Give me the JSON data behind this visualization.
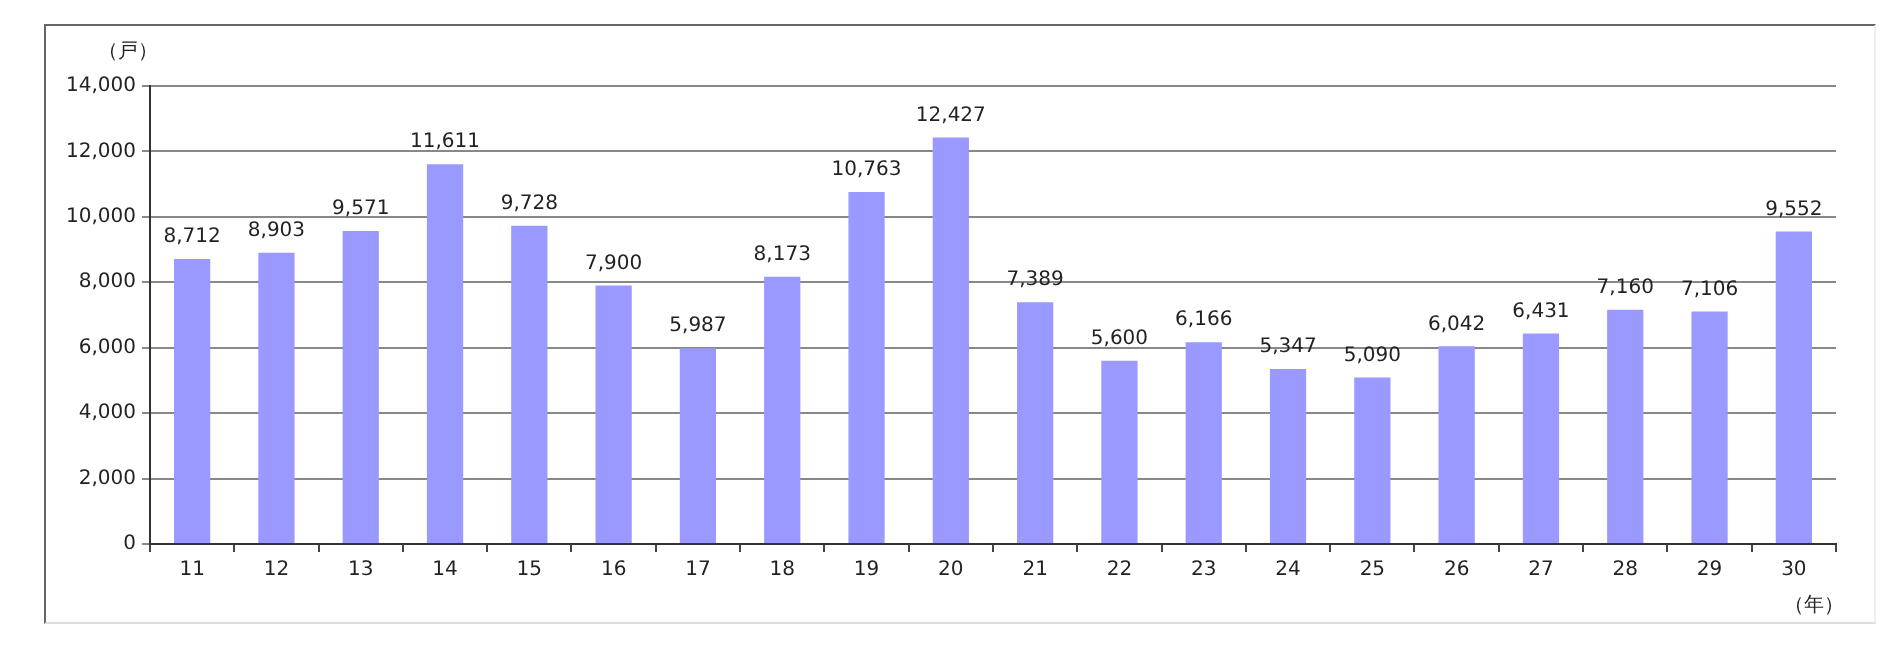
{
  "chart_data": {
    "type": "bar",
    "xlabel": "（年）",
    "ylabel": "（戸）",
    "categories": [
      "11",
      "12",
      "13",
      "14",
      "15",
      "16",
      "17",
      "18",
      "19",
      "20",
      "21",
      "22",
      "23",
      "24",
      "25",
      "26",
      "27",
      "28",
      "29",
      "30"
    ],
    "values": [
      8712,
      8903,
      9571,
      11611,
      9728,
      7900,
      5987,
      8173,
      10763,
      12427,
      7389,
      5600,
      6166,
      5347,
      5090,
      6042,
      6431,
      7160,
      7106,
      9552
    ],
    "value_labels": [
      "8,712",
      "8,903",
      "9,571",
      "11,611",
      "9,728",
      "7,900",
      "5,987",
      "8,173",
      "10,763",
      "12,427",
      "7,389",
      "5,600",
      "6,166",
      "5,347",
      "5,090",
      "6,042",
      "6,431",
      "7,160",
      "7,106",
      "9,552"
    ],
    "color": "#9999ff",
    "ylim": [
      0,
      14000
    ],
    "yticks": [
      0,
      {
        "value": 2000,
        "label": "2,000"
      },
      {
        "value": 4000,
        "label": "4,000"
      },
      {
        "value": 6000,
        "label": "6,000"
      },
      {
        "value": 8000,
        "label": "8,000"
      },
      {
        "value": 10000,
        "label": "10,000"
      },
      {
        "value": 12000,
        "label": "12,000"
      },
      {
        "value": 14000,
        "label": "14,000"
      }
    ],
    "grid": "y",
    "legend": false
  }
}
